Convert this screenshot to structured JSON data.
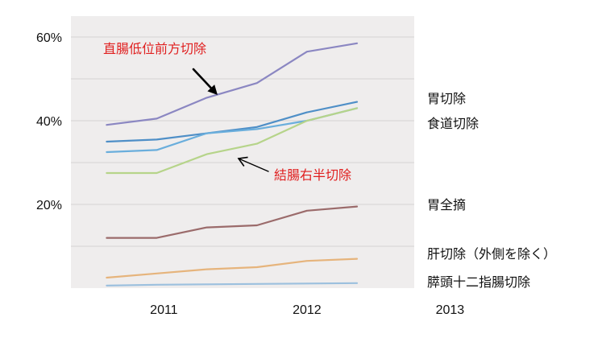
{
  "chart_data": {
    "type": "line",
    "title": "",
    "xlabel": "",
    "ylabel": "",
    "ylim": [
      0,
      65
    ],
    "grid": true,
    "y_ticks": [
      {
        "value": 20,
        "label": "20%"
      },
      {
        "value": 40,
        "label": "40%"
      },
      {
        "value": 60,
        "label": "60%"
      }
    ],
    "x_ticks": [
      {
        "value": 2011.0,
        "label": "2011"
      },
      {
        "value": 2012.0,
        "label": "2012"
      },
      {
        "value": 2013.0,
        "label": "2013"
      }
    ],
    "x": [
      2010.6,
      2010.95,
      2011.3,
      2011.65,
      2012.0,
      2012.35,
      2012.7
    ],
    "series": [
      {
        "name": "直腸低位前方切除",
        "color": "#8b87c2",
        "values": [
          39.0,
          40.5,
          45.5,
          49.0,
          56.5,
          58.5,
          null
        ]
      },
      {
        "name": "胃切除",
        "color": "#4f8fc7",
        "values": [
          35.0,
          35.5,
          37.0,
          38.5,
          42.0,
          44.5,
          null
        ]
      },
      {
        "name": "食道切除",
        "color": "#6aaedc",
        "values": [
          32.5,
          33.0,
          37.0,
          38.0,
          40.0,
          43.0,
          null
        ]
      },
      {
        "name": "結腸右半切除",
        "color": "#b6d48a",
        "values": [
          27.5,
          27.5,
          32.0,
          34.5,
          40.0,
          43.0,
          null
        ]
      },
      {
        "name": "胃全摘",
        "color": "#9b6b6b",
        "values": [
          12.0,
          12.0,
          14.5,
          15.0,
          18.5,
          19.5,
          null
        ]
      },
      {
        "name": "肝切除（外側を除く）",
        "color": "#e6b47c",
        "values": [
          2.5,
          3.5,
          4.5,
          5.0,
          6.5,
          7.0,
          null
        ]
      },
      {
        "name": "膵頭十二指腸切除",
        "color": "#9cc0de",
        "values": [
          0.6,
          0.8,
          0.9,
          1.0,
          1.1,
          1.2,
          null
        ]
      }
    ],
    "annotations": [
      {
        "text": "直腸低位前方切除",
        "points_to": "直腸低位前方切除",
        "color": "#e02020"
      },
      {
        "text": "結腸右半切除",
        "points_to": "結腸右半切除",
        "color": "#e02020"
      }
    ],
    "right_labels": [
      "胃切除",
      "食道切除",
      "胃全摘",
      "肝切除（外側を除く）",
      "膵頭十二指腸切除"
    ]
  }
}
